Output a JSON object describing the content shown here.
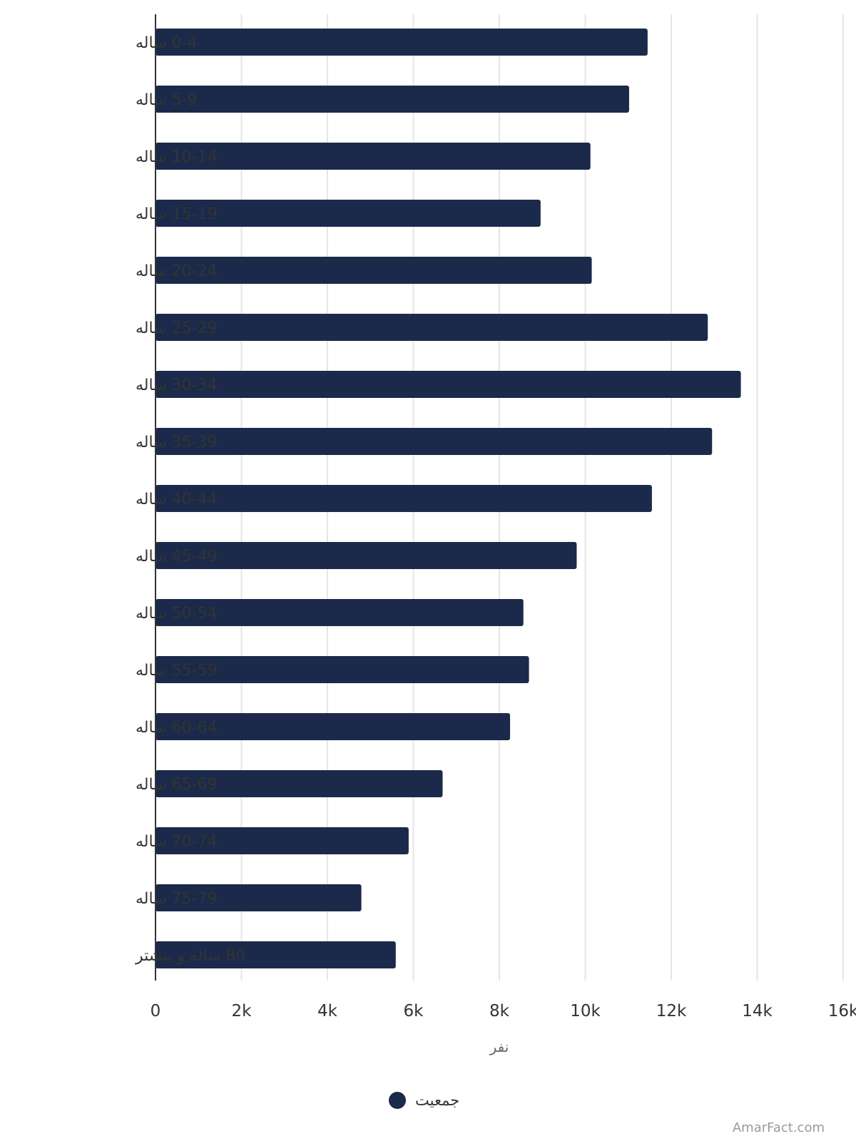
{
  "chart_data": {
    "type": "bar",
    "orientation": "horizontal",
    "categories": [
      "0-4 ساله",
      "5-9 ساله",
      "10-14 ساله",
      "15-19 ساله",
      "20-24 ساله",
      "25-29 ساله",
      "30-34 ساله",
      "35-39 ساله",
      "40-44 ساله",
      "45-49 ساله",
      "50-54 ساله",
      "55-59 ساله",
      "60-64 ساله",
      "65-69 ساله",
      "70-74 ساله",
      "75-79 ساله",
      "80 ساله و بیشتر"
    ],
    "series": [
      {
        "name": "جمعیت",
        "color": "#1b2a4a",
        "values": [
          11450,
          11020,
          10120,
          8960,
          10150,
          12850,
          13620,
          12950,
          11550,
          9800,
          8560,
          8690,
          8250,
          6680,
          5890,
          4790,
          5590
        ]
      }
    ],
    "xlabel": "نفر",
    "ylabel": "",
    "xlim": [
      0,
      16000
    ],
    "xticks": [
      {
        "value": 0,
        "label": "0"
      },
      {
        "value": 2000,
        "label": "2k"
      },
      {
        "value": 4000,
        "label": "4k"
      },
      {
        "value": 6000,
        "label": "6k"
      },
      {
        "value": 8000,
        "label": "8k"
      },
      {
        "value": 10000,
        "label": "10k"
      },
      {
        "value": 12000,
        "label": "12k"
      },
      {
        "value": 14000,
        "label": "14k"
      },
      {
        "value": 16000,
        "label": "16k"
      }
    ],
    "grid": "vertical",
    "legend_position": "bottom-center"
  },
  "legend": {
    "label": "جمعیت",
    "color": "#1b2a4a"
  },
  "watermark": "AmarFact.com"
}
